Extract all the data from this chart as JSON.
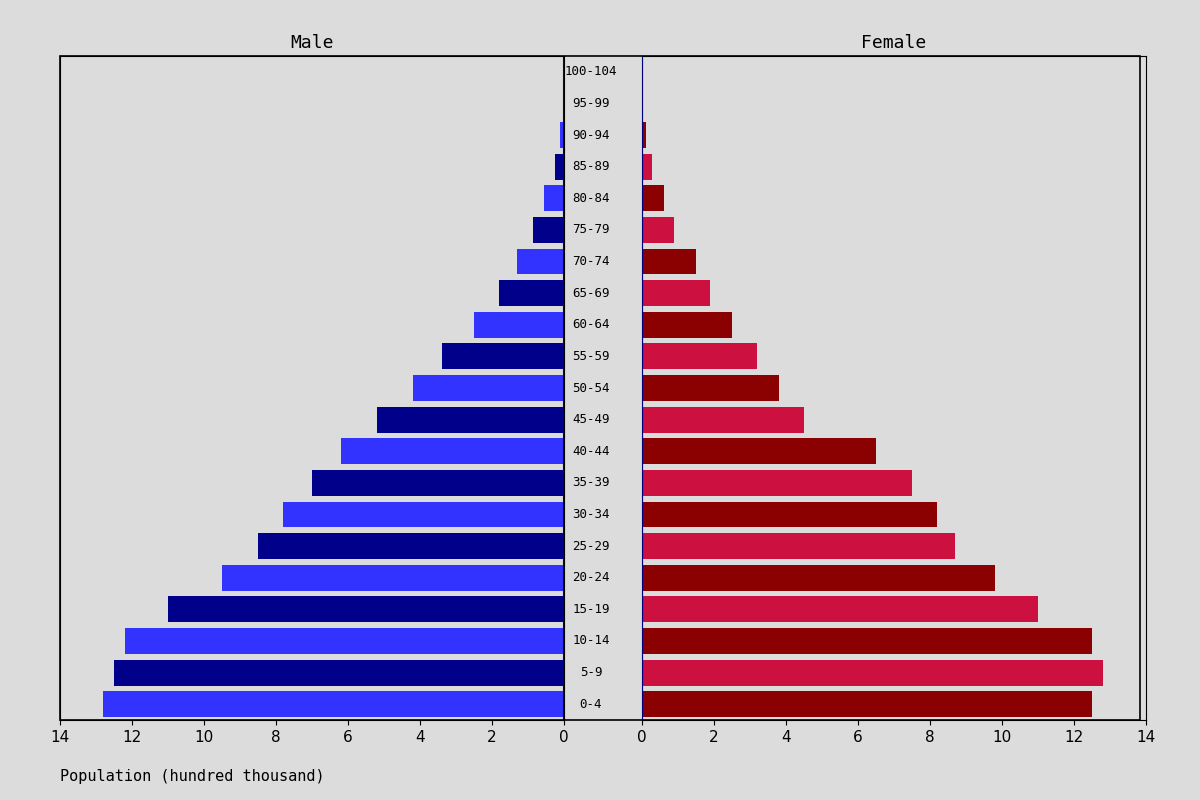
{
  "age_groups": [
    "0-4",
    "5-9",
    "10-14",
    "15-19",
    "20-24",
    "25-29",
    "30-34",
    "35-39",
    "40-44",
    "45-49",
    "50-54",
    "55-59",
    "60-64",
    "65-69",
    "70-74",
    "75-79",
    "80-84",
    "85-89",
    "90-94",
    "95-99",
    "100-104"
  ],
  "male": [
    12.8,
    12.5,
    12.2,
    11.0,
    9.5,
    8.5,
    7.8,
    7.0,
    6.2,
    5.2,
    4.2,
    3.4,
    2.5,
    1.8,
    1.3,
    0.85,
    0.55,
    0.25,
    0.1,
    0.04,
    0.01
  ],
  "female": [
    12.5,
    12.8,
    12.5,
    11.0,
    9.8,
    8.7,
    8.2,
    7.5,
    6.5,
    4.5,
    3.8,
    3.2,
    2.5,
    1.9,
    1.5,
    0.9,
    0.6,
    0.28,
    0.1,
    0.04,
    0.01
  ],
  "male_colors": [
    "#3333ff",
    "#00008b",
    "#3333ff",
    "#00008b",
    "#3333ff",
    "#00008b",
    "#3333ff",
    "#00008b",
    "#3333ff",
    "#00008b",
    "#3333ff",
    "#00008b",
    "#3333ff",
    "#00008b",
    "#3333ff",
    "#00008b",
    "#3333ff",
    "#00008b",
    "#3333ff",
    "#00008b",
    "#3333ff"
  ],
  "female_colors": [
    "#8b0000",
    "#cc1040",
    "#8b0000",
    "#cc1040",
    "#8b0000",
    "#cc1040",
    "#8b0000",
    "#cc1040",
    "#8b0000",
    "#cc1040",
    "#8b0000",
    "#cc1040",
    "#8b0000",
    "#cc1040",
    "#8b0000",
    "#cc1040",
    "#8b0000",
    "#cc1040",
    "#8b0000",
    "#cc1040",
    "#8b0000"
  ],
  "xlabel": "Population (hundred thousand)",
  "male_label": "Male",
  "female_label": "Female",
  "xlim": 14,
  "background_color": "#dcdcdc",
  "tick_fontsize": 11,
  "label_fontsize": 13,
  "age_label_fontsize": 9
}
